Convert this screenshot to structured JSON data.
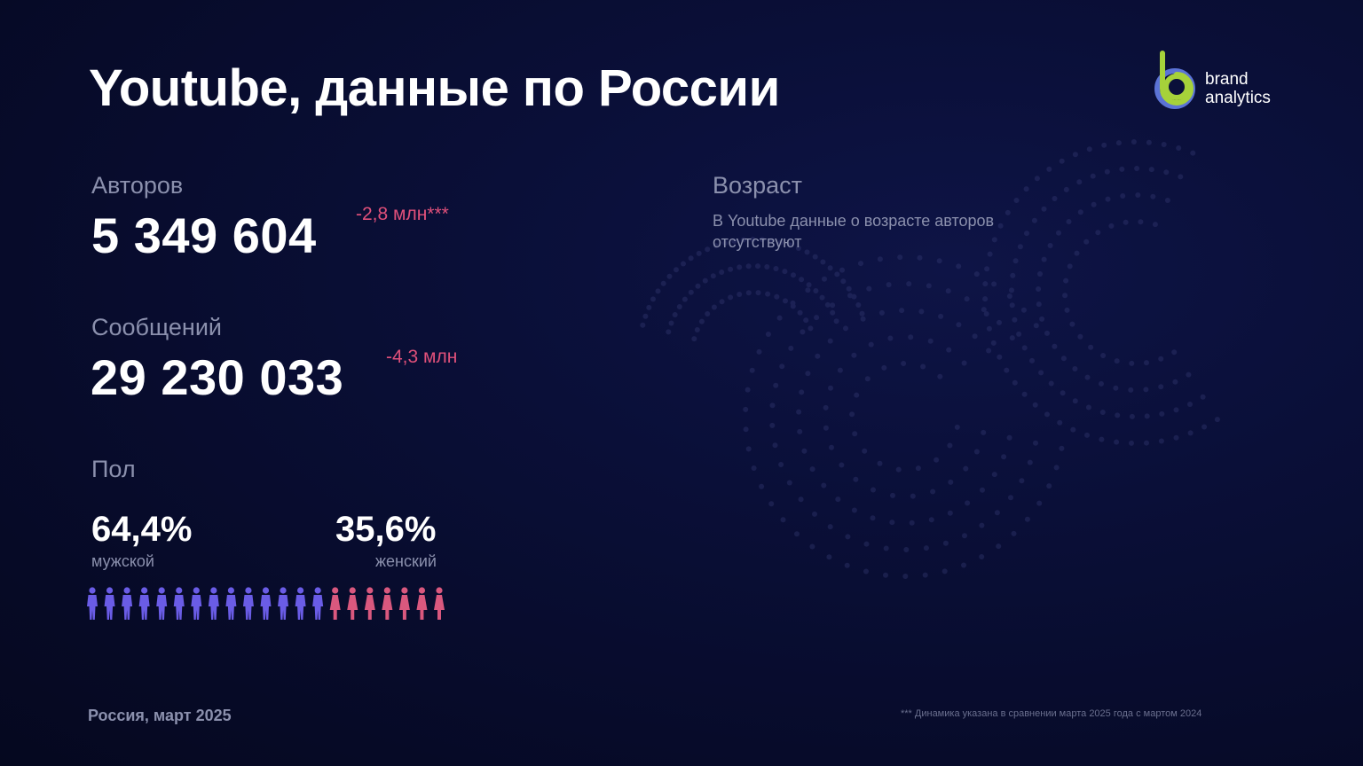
{
  "title": "Youtube, данные по России",
  "logo": {
    "line1": "brand",
    "line2": "analytics",
    "colors": {
      "green": "#a6d23a",
      "blue": "#5b73d6"
    }
  },
  "authors": {
    "label": "Авторов",
    "value": "5 349 604",
    "delta": "-2,8 млн***"
  },
  "messages": {
    "label": "Сообщений",
    "value": "29 230 033",
    "delta": "-4,3 млн"
  },
  "gender": {
    "label": "Пол",
    "male": {
      "percent": "64,4%",
      "label": "мужской",
      "count": 14,
      "color": "#6a5ce6"
    },
    "female": {
      "percent": "35,6%",
      "label": "женский",
      "count": 7,
      "color": "#d9587e"
    }
  },
  "age": {
    "label": "Возраст",
    "text": "В Youtube данные о возрасте авторов отсутствуют"
  },
  "footer": {
    "region_date": "Россия, март 2025",
    "note": "*** Динамика указана в сравнении марта 2025 года с мартом 2024"
  },
  "colors": {
    "accent_red": "#e0507a",
    "muted": "#8b90ad",
    "background": "#070b2a"
  }
}
